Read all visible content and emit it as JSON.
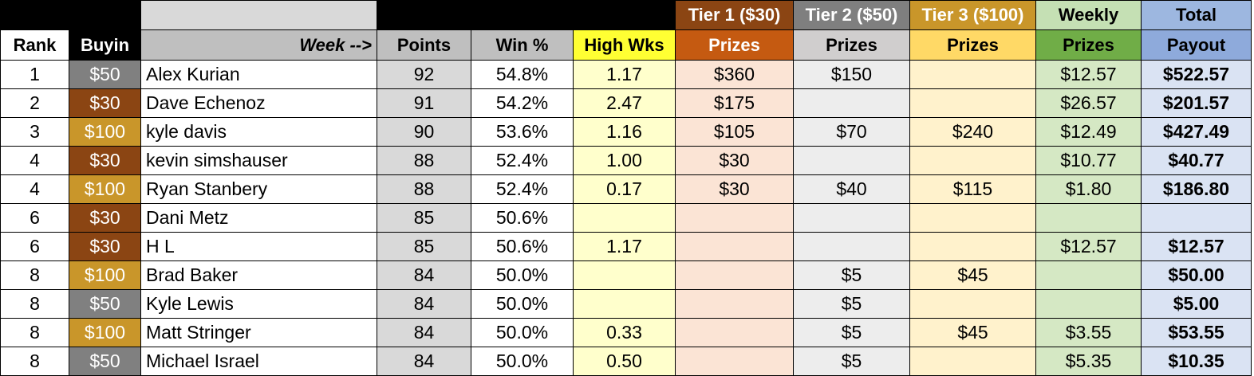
{
  "header_top": {
    "tier1": "Tier 1 ($30)",
    "tier2": "Tier 2 ($50)",
    "tier3": "Tier 3 ($100)",
    "weekly": "Weekly",
    "total": "Total"
  },
  "header": {
    "rank": "Rank",
    "buyin": "Buyin",
    "week": "Week -->",
    "points": "Points",
    "win": "Win %",
    "high": "High Wks",
    "t1": "Prizes",
    "t2": "Prizes",
    "t3": "Prizes",
    "weekly": "Prizes",
    "total": "Payout"
  },
  "colors": {
    "buyin_30": "#8b4513",
    "buyin_50": "#808080",
    "buyin_100": "#c9962a"
  },
  "rows": [
    {
      "rank": "1",
      "buyin": "$50",
      "name": "Alex Kurian",
      "points": "92",
      "win": "54.8%",
      "high": "1.17",
      "t1": "$360",
      "t2": "$150",
      "t3": "",
      "weekly": "$12.57",
      "total": "$522.57"
    },
    {
      "rank": "2",
      "buyin": "$30",
      "name": "Dave Echenoz",
      "points": "91",
      "win": "54.2%",
      "high": "2.47",
      "t1": "$175",
      "t2": "",
      "t3": "",
      "weekly": "$26.57",
      "total": "$201.57"
    },
    {
      "rank": "3",
      "buyin": "$100",
      "name": "kyle davis",
      "points": "90",
      "win": "53.6%",
      "high": "1.16",
      "t1": "$105",
      "t2": "$70",
      "t3": "$240",
      "weekly": "$12.49",
      "total": "$427.49"
    },
    {
      "rank": "4",
      "buyin": "$30",
      "name": "kevin simshauser",
      "points": "88",
      "win": "52.4%",
      "high": "1.00",
      "t1": "$30",
      "t2": "",
      "t3": "",
      "weekly": "$10.77",
      "total": "$40.77"
    },
    {
      "rank": "4",
      "buyin": "$100",
      "name": "Ryan Stanbery",
      "points": "88",
      "win": "52.4%",
      "high": "0.17",
      "t1": "$30",
      "t2": "$40",
      "t3": "$115",
      "weekly": "$1.80",
      "total": "$186.80"
    },
    {
      "rank": "6",
      "buyin": "$30",
      "name": "Dani Metz",
      "points": "85",
      "win": "50.6%",
      "high": "",
      "t1": "",
      "t2": "",
      "t3": "",
      "weekly": "",
      "total": ""
    },
    {
      "rank": "6",
      "buyin": "$30",
      "name": "H L",
      "points": "85",
      "win": "50.6%",
      "high": "1.17",
      "t1": "",
      "t2": "",
      "t3": "",
      "weekly": "$12.57",
      "total": "$12.57"
    },
    {
      "rank": "8",
      "buyin": "$100",
      "name": "Brad Baker",
      "points": "84",
      "win": "50.0%",
      "high": "",
      "t1": "",
      "t2": "$5",
      "t3": "$45",
      "weekly": "",
      "total": "$50.00"
    },
    {
      "rank": "8",
      "buyin": "$50",
      "name": "Kyle Lewis",
      "points": "84",
      "win": "50.0%",
      "high": "",
      "t1": "",
      "t2": "$5",
      "t3": "",
      "weekly": "",
      "total": "$5.00"
    },
    {
      "rank": "8",
      "buyin": "$100",
      "name": "Matt Stringer",
      "points": "84",
      "win": "50.0%",
      "high": "0.33",
      "t1": "",
      "t2": "$5",
      "t3": "$45",
      "weekly": "$3.55",
      "total": "$53.55"
    },
    {
      "rank": "8",
      "buyin": "$50",
      "name": "Michael Israel",
      "points": "84",
      "win": "50.0%",
      "high": "0.50",
      "t1": "",
      "t2": "$5",
      "t3": "",
      "weekly": "$5.35",
      "total": "$10.35"
    }
  ]
}
